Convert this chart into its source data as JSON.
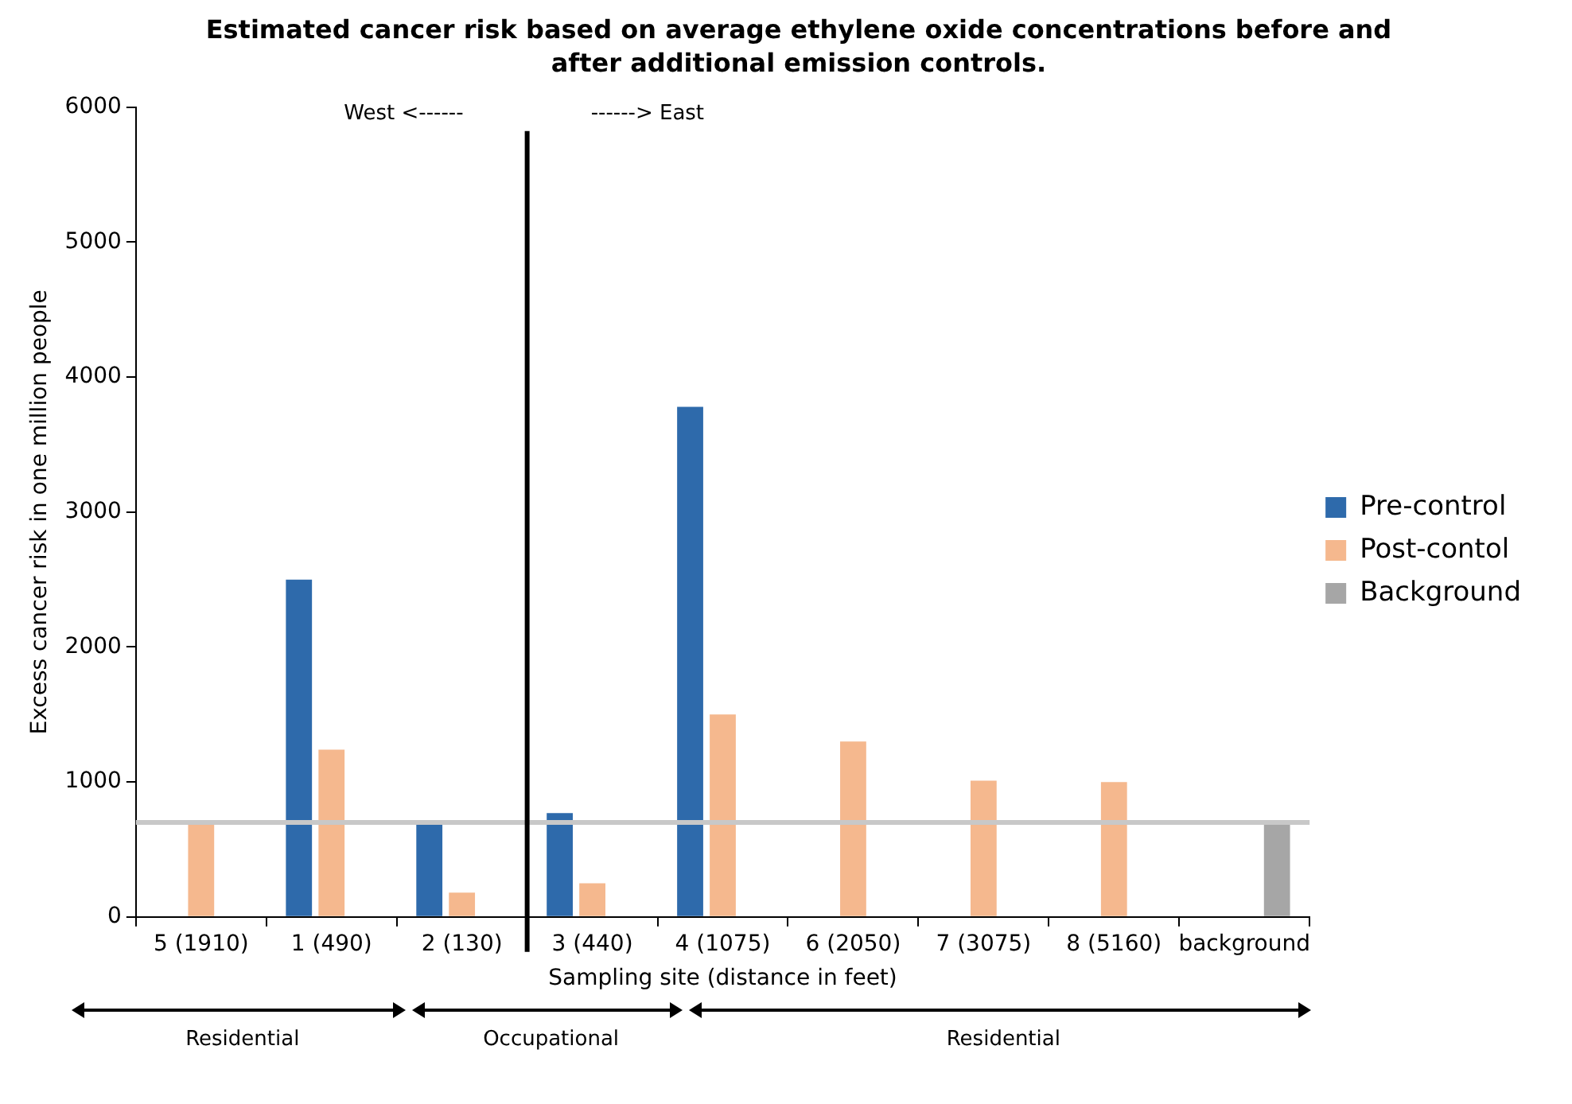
{
  "chart_data": {
    "type": "bar",
    "title": "Estimated cancer risk based on average ethylene oxide concentrations before and after additional emission controls.",
    "xlabel": "Sampling site (distance in feet)",
    "ylabel": "Excess cancer risk in one million people",
    "categories": [
      "5 (1910)",
      "1 (490)",
      "2 (130)",
      "3 (440)",
      "4 (1075)",
      "6 (2050)",
      "7 (3075)",
      "8 (5160)",
      "background"
    ],
    "series": [
      {
        "name": "Pre-control",
        "color": "#2e6aab",
        "values": [
          null,
          2500,
          700,
          770,
          3780,
          null,
          null,
          null,
          null
        ]
      },
      {
        "name": "Post-contol",
        "color": "#f5b88e",
        "values": [
          700,
          1240,
          180,
          250,
          1500,
          1300,
          1010,
          1000,
          null
        ]
      },
      {
        "name": "Background",
        "color": "#a6a6a6",
        "values": [
          null,
          null,
          null,
          null,
          null,
          null,
          null,
          null,
          700
        ]
      }
    ],
    "ylim": [
      0,
      6000
    ],
    "yticks": [
      0,
      1000,
      2000,
      3000,
      4000,
      5000,
      6000
    ],
    "grid": false,
    "legend": "right",
    "ref_lines": [
      {
        "axis": "y",
        "value": 700,
        "color": "#c8c8c8"
      }
    ],
    "annotations": [
      "West <------",
      "------> East",
      "Residential",
      "Occupational",
      "Residential"
    ]
  }
}
